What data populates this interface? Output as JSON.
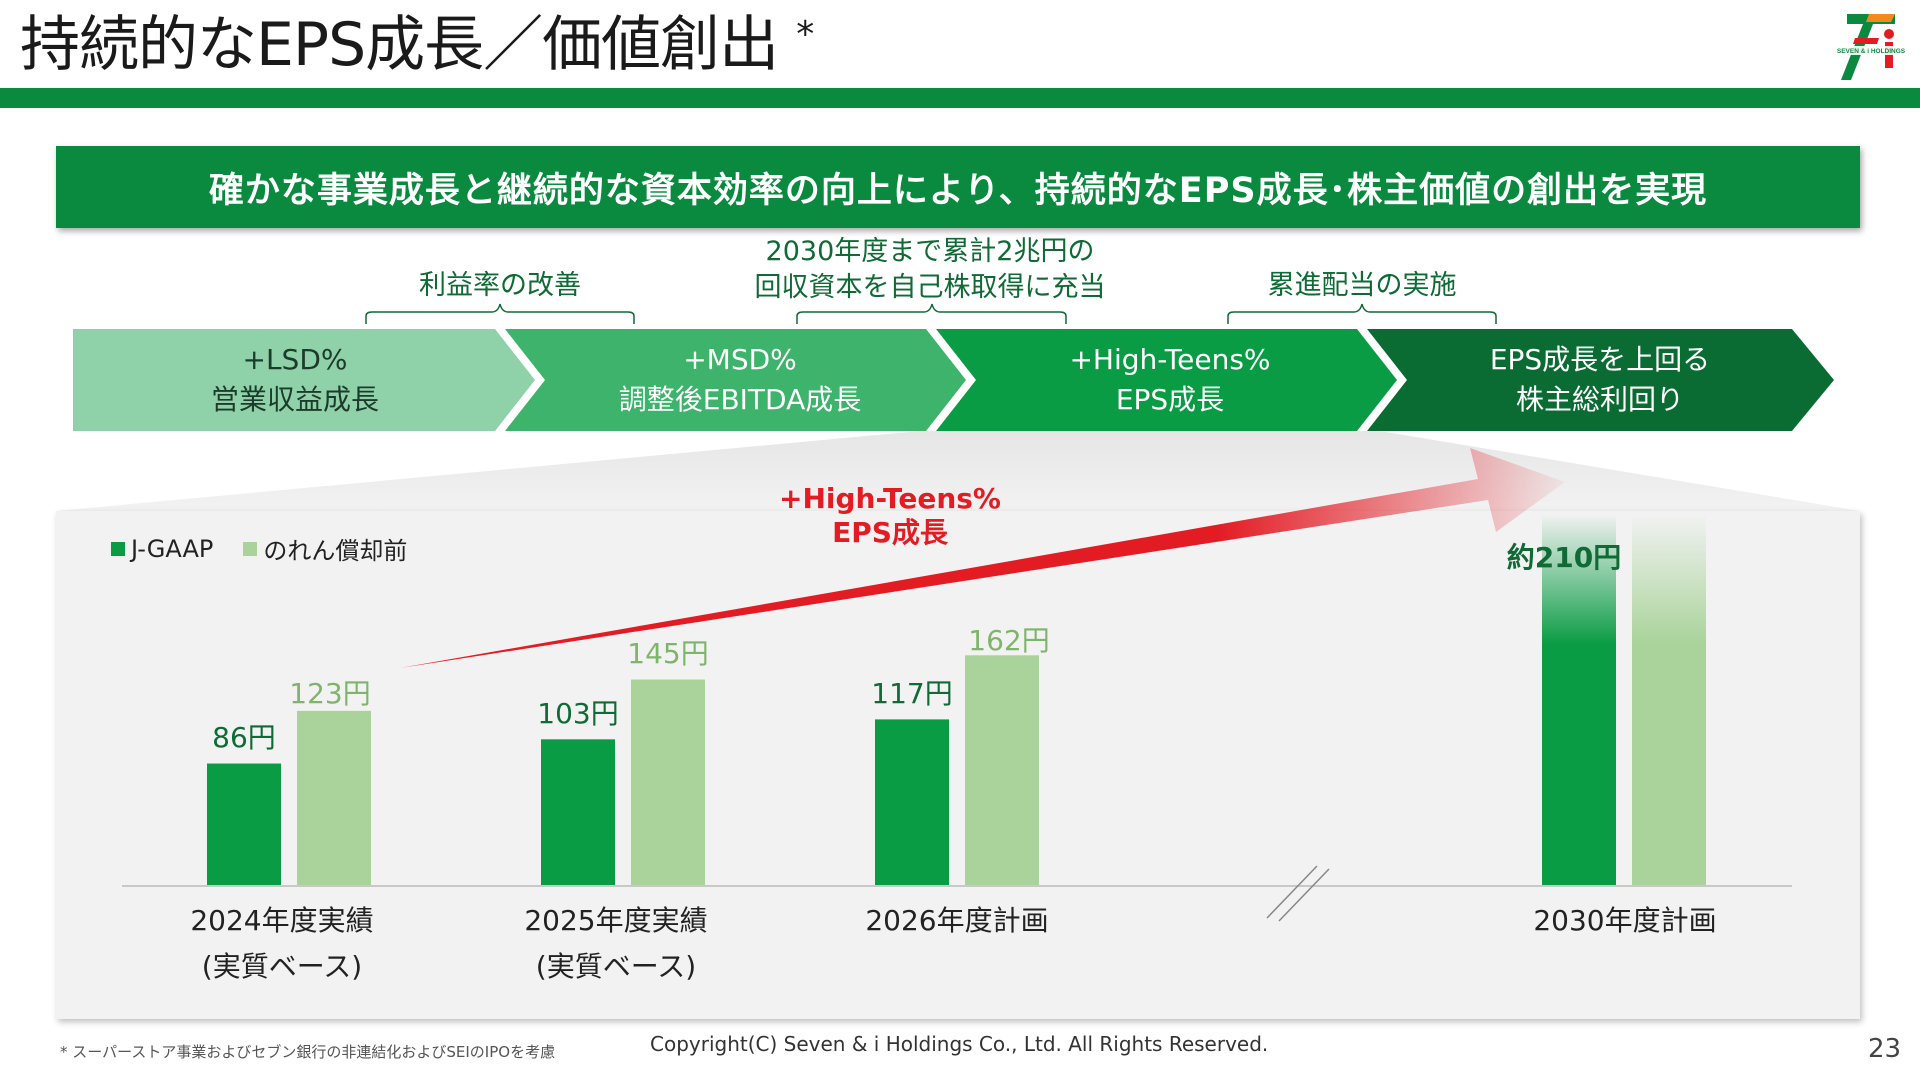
{
  "header": {
    "title": "持続的なEPS成長／価値創出",
    "title_mark": "*",
    "logo_text": "SEVEN & i HOLDINGS"
  },
  "banner": {
    "text": "確かな事業成長と継続的な資本効率の向上により、持続的なEPS成長･株主価値の創出を実現"
  },
  "annotations": [
    {
      "line1": "利益率の改善",
      "line2": ""
    },
    {
      "line1": "2030年度まで累計2兆円の",
      "line2": "回収資本を自己株取得に充当"
    },
    {
      "line1": "累進配当の実施",
      "line2": ""
    }
  ],
  "steps": [
    {
      "line1": "+LSD%",
      "line2": "営業収益成長",
      "color": "#8fd1a8"
    },
    {
      "line1": "+MSD%",
      "line2": "調整後EBITDA成長",
      "color": "#3db36b"
    },
    {
      "line1": "+High-Teens%",
      "line2": "EPS成長",
      "color": "#0a9c44"
    },
    {
      "line1": "EPS成長を上回る",
      "line2": "株主総利回り",
      "color": "#0a6b33"
    }
  ],
  "colors": {
    "jgaap": "#0a9c44",
    "goodwill": "#a9d39a",
    "trend": "#e31b23",
    "brand_green": "#0a8a3f"
  },
  "chart_data": {
    "type": "bar",
    "categories": [
      {
        "line1": "2024年度実績",
        "line2": "(実質ベース)"
      },
      {
        "line1": "2025年度実績",
        "line2": "(実質ベース)"
      },
      {
        "line1": "2026年度計画",
        "line2": ""
      },
      {
        "line1": "2030年度計画",
        "line2": ""
      }
    ],
    "series": [
      {
        "name": "J-GAAP",
        "values": [
          86,
          103,
          117,
          210
        ],
        "labels": [
          "86円",
          "103円",
          "117円",
          "約210円"
        ]
      },
      {
        "name": "のれん償却前",
        "values": [
          123,
          145,
          162,
          null
        ],
        "labels": [
          "123円",
          "145円",
          "162円",
          ""
        ]
      }
    ],
    "trend_label": {
      "line1": "+High-Teens%",
      "line2": "EPS成長"
    },
    "ylim": [
      0,
      250
    ],
    "legend_position": "top-left",
    "axis_break_between": [
      "2026年度計画",
      "2030年度計画"
    ]
  },
  "footer": {
    "footnote": "* スーパーストア事業およびセブン銀行の非連結化およびSEIのIPOを考慮",
    "copyright": "Copyright(C) Seven & i Holdings Co., Ltd. All Rights Reserved.",
    "page_number": "23"
  }
}
